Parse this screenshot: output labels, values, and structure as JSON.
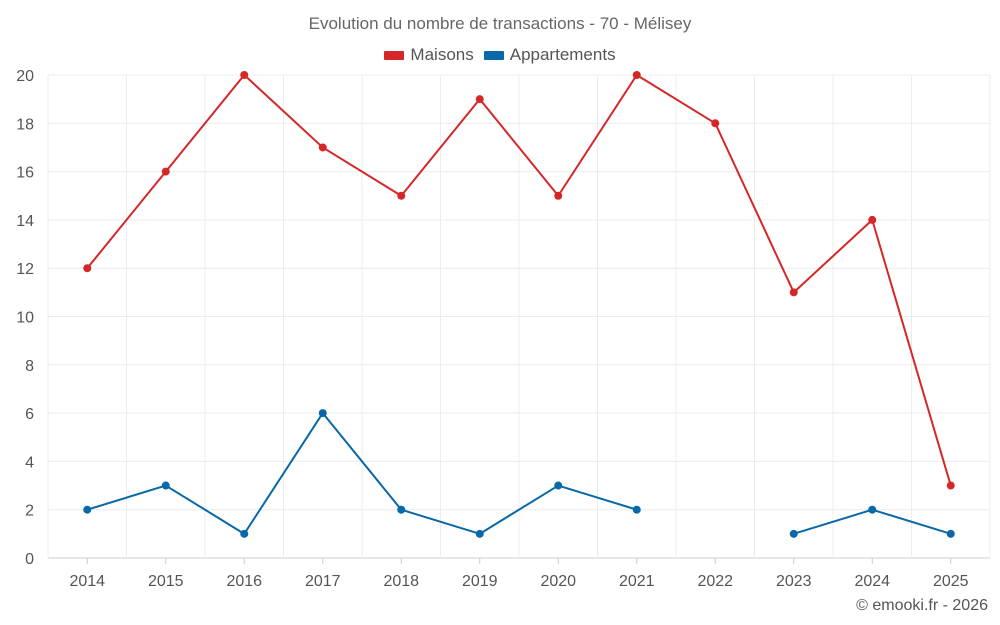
{
  "chart_data": {
    "type": "line",
    "title": "Evolution du nombre de transactions - 70 - Mélisey",
    "xlabel": "",
    "ylabel": "",
    "categories": [
      "2014",
      "2015",
      "2016",
      "2017",
      "2018",
      "2019",
      "2020",
      "2021",
      "2022",
      "2023",
      "2024",
      "2025"
    ],
    "ylim": [
      0,
      20
    ],
    "yticks": [
      0,
      2,
      4,
      6,
      8,
      10,
      12,
      14,
      16,
      18,
      20
    ],
    "grid": true,
    "legend_position": "top-center",
    "series": [
      {
        "name": "Maisons",
        "color": "#d62728",
        "values": [
          12,
          16,
          20,
          17,
          15,
          19,
          15,
          20,
          18,
          11,
          14,
          3
        ]
      },
      {
        "name": "Appartements",
        "color": "#0868a8",
        "values": [
          2,
          3,
          1,
          6,
          2,
          1,
          3,
          2,
          null,
          1,
          2,
          1
        ]
      }
    ]
  },
  "watermark": "© emooki.fr - 2026"
}
